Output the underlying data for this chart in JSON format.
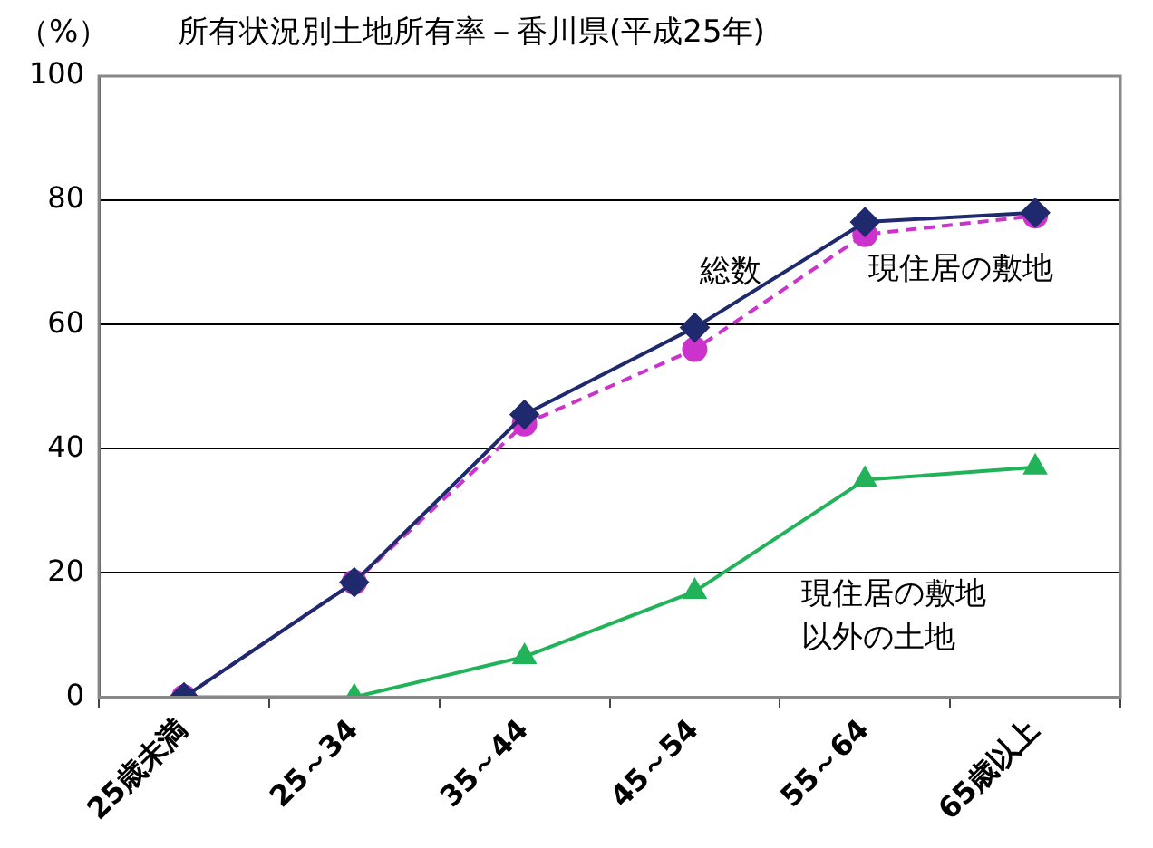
{
  "chart_data": {
    "type": "line",
    "title": "所有状況別土地所有率－香川県(平成25年)",
    "ylabel": "（%）",
    "categories": [
      "25歳未満",
      "25～34",
      "35～44",
      "45～54",
      "55～64",
      "65歳以上"
    ],
    "series": [
      {
        "name": "総数",
        "color": "#1f2a6e",
        "marker": "diamond",
        "line_style": "solid",
        "values": [
          0,
          18.5,
          45.5,
          59.5,
          76.5,
          78
        ]
      },
      {
        "name": "現住居の敷地",
        "color": "#cc33cc",
        "marker": "circle",
        "line_style": "dashed",
        "values": [
          0,
          18.5,
          44,
          56,
          74.5,
          77.5
        ]
      },
      {
        "name": "現住居の敷地以外の土地",
        "color": "#22b35a",
        "marker": "triangle",
        "line_style": "solid",
        "values": [
          0,
          0,
          6.5,
          17,
          35,
          37
        ]
      }
    ],
    "ylim": [
      0,
      100
    ],
    "yticks": [
      0,
      20,
      40,
      60,
      80,
      100
    ],
    "grid": "y",
    "legend": false
  }
}
